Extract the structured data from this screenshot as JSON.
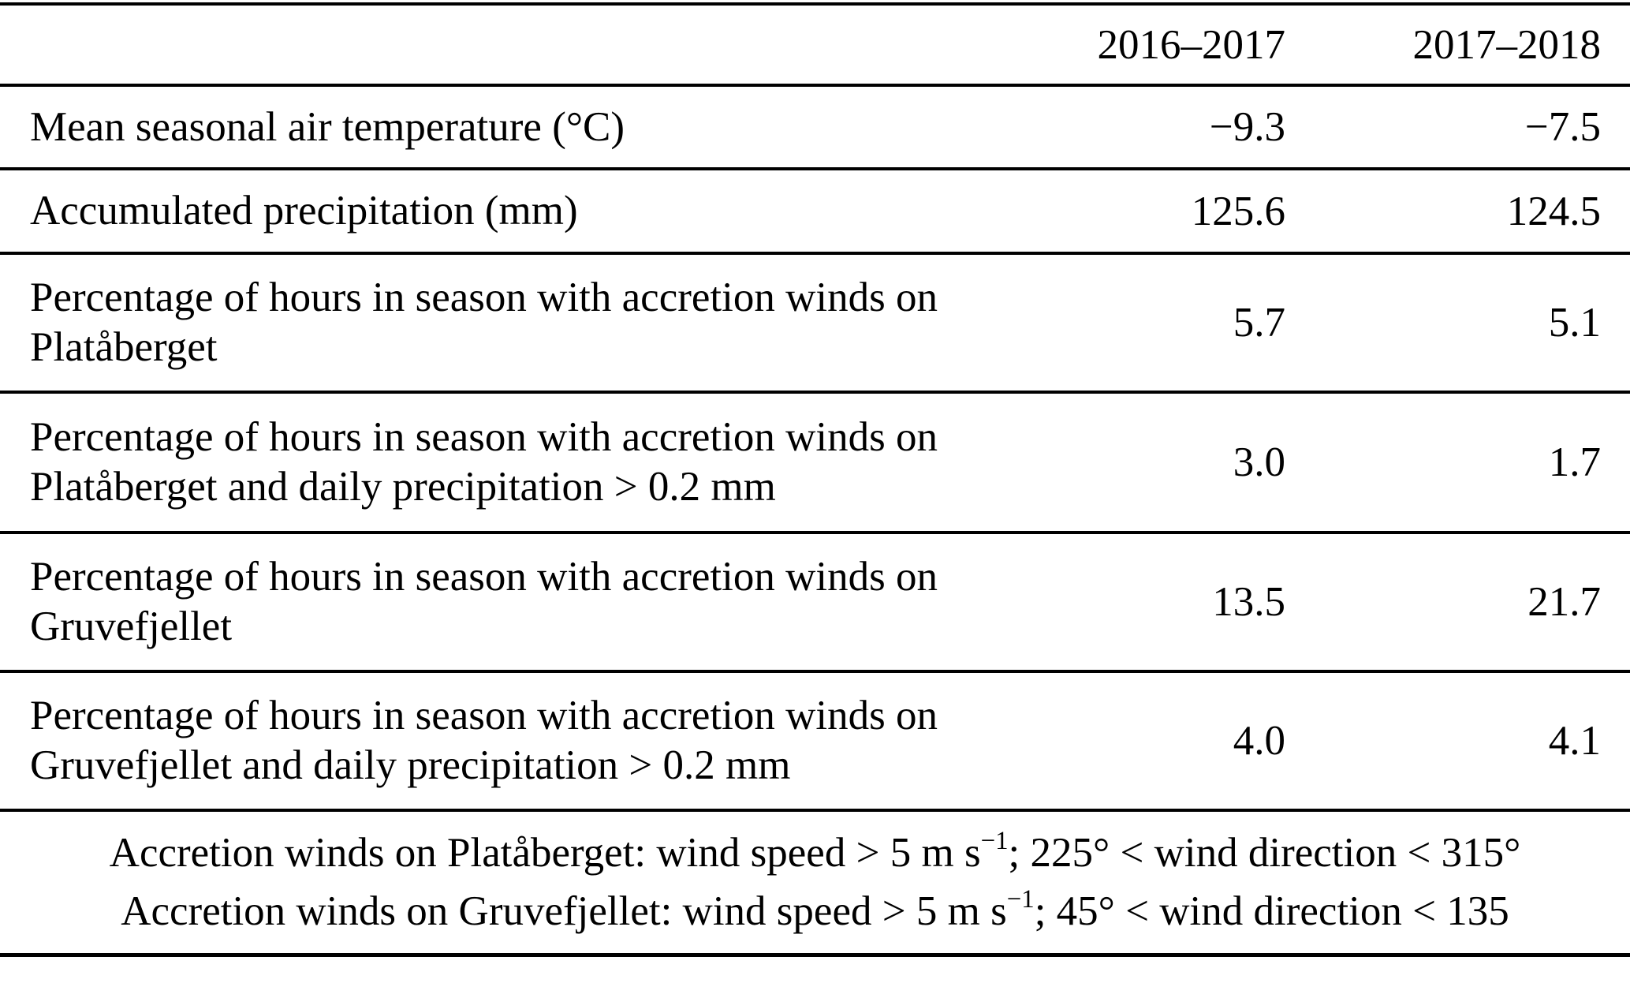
{
  "table": {
    "columns": [
      "2016–2017",
      "2017–2018"
    ],
    "rows": [
      {
        "label": "Mean seasonal air temperature (°C)",
        "values": [
          "−9.3",
          "−7.5"
        ]
      },
      {
        "label": "Accumulated precipitation (mm)",
        "values": [
          "125.6",
          "124.5"
        ]
      },
      {
        "label": "Percentage of hours in season with accretion winds on\nPlatåberget",
        "values": [
          "5.7",
          "5.1"
        ]
      },
      {
        "label": "Percentage of hours in season with accretion winds on\nPlatåberget and daily precipitation > 0.2 mm",
        "values": [
          "3.0",
          "1.7"
        ]
      },
      {
        "label": "Percentage of hours in season with accretion winds on\nGruvefjellet",
        "values": [
          "13.5",
          "21.7"
        ]
      },
      {
        "label": "Percentage of hours in season with accretion winds on\nGruvefjellet and daily precipitation > 0.2 mm",
        "values": [
          "4.0",
          "4.1"
        ]
      }
    ],
    "footnotes": [
      {
        "before": "Accretion winds on Platåberget: wind speed > 5 m s",
        "sup": "−1",
        "after": "; 225° < wind direction < 315°"
      },
      {
        "before": "Accretion winds on Gruvefjellet: wind speed > 5 m s",
        "sup": "−1",
        "after": "; 45° < wind direction < 135"
      }
    ],
    "colors": {
      "text": "#000000",
      "background": "#ffffff",
      "rule": "#000000"
    }
  }
}
